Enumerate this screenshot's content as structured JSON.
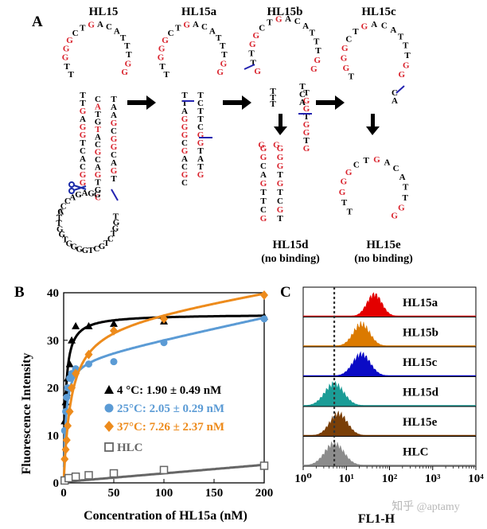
{
  "panel_a": {
    "panel_label": "A",
    "structures": [
      {
        "name": "HL15"
      },
      {
        "name": "HL15a"
      },
      {
        "name": "HL15b"
      },
      {
        "name": "HL15c"
      }
    ],
    "products": [
      {
        "name": "HL15d",
        "note": "(no binding)"
      },
      {
        "name": "HL15e",
        "note": "(no binding)"
      }
    ],
    "top_loop_seq": "GCTGAC",
    "hl15_lower_loop_seq": "TGGTCTGCTGG",
    "hl15_left_loop_seq": "ACCAGAGG"
  },
  "panel_b": {
    "panel_label": "B",
    "chart_data": {
      "type": "scatter",
      "xlabel": "Concentration of HL15a (nM)",
      "ylabel": "Fluorescence Intensity",
      "xlim": [
        0,
        200
      ],
      "ylim": [
        0,
        40
      ],
      "x_ticks": [
        "0",
        "50",
        "100",
        "150",
        "200"
      ],
      "y_ticks": [
        "0",
        "10",
        "20",
        "30",
        "40"
      ],
      "series": [
        {
          "name": "4 °C: 1.90 ± 0.49 nM",
          "color": "#000000",
          "marker": "triangle",
          "x": [
            1,
            2,
            3,
            4,
            6,
            8,
            12,
            25,
            50,
            100,
            200
          ],
          "y": [
            13,
            17,
            19,
            22,
            25,
            30,
            33,
            33,
            33.5,
            34,
            35
          ],
          "fit": {
            "bmax": 35.5,
            "kd": 1.9
          }
        },
        {
          "name": "25°C: 2.05 ± 0.29 nM",
          "color": "#5b9bd5",
          "marker": "circle",
          "x": [
            1,
            2,
            3,
            4,
            6,
            8,
            12,
            25,
            50,
            100,
            200
          ],
          "y": [
            11,
            15,
            18,
            20,
            22,
            23,
            24,
            25,
            25.5,
            29.5,
            34.5
          ],
          "fit": {
            "bmax": 26,
            "kd": 2.05,
            "ns": 0.045
          }
        },
        {
          "name": "37°C: 7.26 ± 2.37 nM",
          "color": "#ed8b1c",
          "marker": "diamond",
          "x": [
            1,
            2,
            3,
            4,
            6,
            8,
            12,
            25,
            50,
            100,
            200
          ],
          "y": [
            5,
            7,
            9,
            12,
            15,
            20,
            23,
            27,
            32,
            34.5,
            39.5
          ],
          "fit": {
            "bmax": 34,
            "kd": 7.26,
            "ns": 0.035
          }
        },
        {
          "name": "HLC",
          "color": "#666666",
          "marker": "square",
          "x": [
            1,
            5,
            12,
            25,
            50,
            100,
            200
          ],
          "y": [
            0.5,
            1,
            1.3,
            1.6,
            2,
            2.7,
            3.6
          ],
          "fit": {
            "bmax": 0,
            "kd": 1,
            "ns": 0.018,
            "c": 0.2
          }
        }
      ]
    }
  },
  "panel_c": {
    "panel_label": "C",
    "xlabel": "FL1-H",
    "x_ticks": [
      "10⁰",
      "10¹",
      "10²",
      "10³",
      "10⁴"
    ],
    "tracks": [
      {
        "name": "HL15a",
        "color": "#e30000",
        "peak_log": 1.65,
        "width": 0.17
      },
      {
        "name": "HL15b",
        "color": "#db7a00",
        "peak_log": 1.35,
        "width": 0.19
      },
      {
        "name": "HL15c",
        "color": "#0b0bc5",
        "peak_log": 1.35,
        "width": 0.2
      },
      {
        "name": "HL15d",
        "color": "#1b9c96",
        "peak_log": 0.72,
        "width": 0.22
      },
      {
        "name": "HL15e",
        "color": "#7a3f08",
        "peak_log": 0.82,
        "width": 0.2
      },
      {
        "name": "HLC",
        "color": "#8c8c8c",
        "peak_log": 0.72,
        "width": 0.22
      }
    ],
    "watermark": "知乎 @aptamy"
  }
}
